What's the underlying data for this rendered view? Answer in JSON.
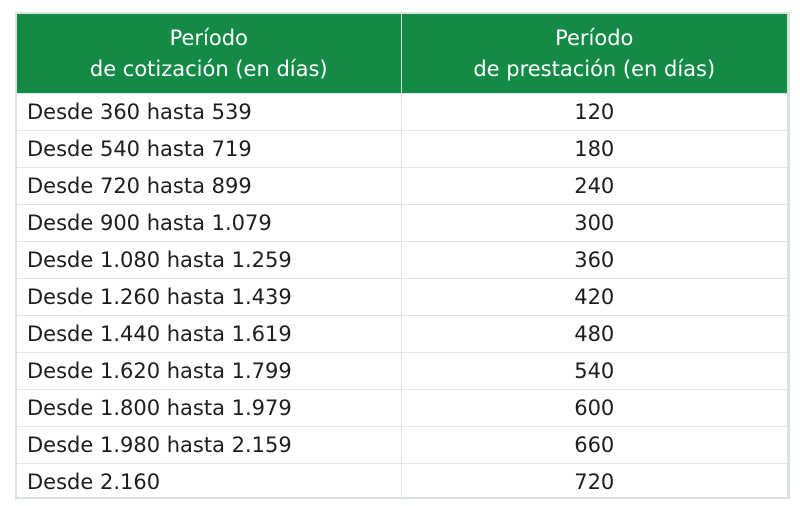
{
  "table": {
    "headers": [
      [
        "Período",
        "de cotización (en días)"
      ],
      [
        "Período",
        "de prestación (en días)"
      ]
    ],
    "rows": [
      [
        "Desde 360 hasta 539",
        120
      ],
      [
        "Desde 540 hasta 719",
        180
      ],
      [
        "Desde 720 hasta 899",
        240
      ],
      [
        "Desde 900 hasta 1.079",
        300
      ],
      [
        "Desde 1.080 hasta 1.259",
        360
      ],
      [
        "Desde 1.260 hasta 1.439",
        420
      ],
      [
        "Desde 1.440 hasta 1.619",
        480
      ],
      [
        "Desde 1.620 hasta 1.799",
        540
      ],
      [
        "Desde 1.800 hasta 1.979",
        600
      ],
      [
        "Desde 1.980 hasta 2.159",
        660
      ],
      [
        "Desde 2.160",
        720
      ]
    ]
  }
}
